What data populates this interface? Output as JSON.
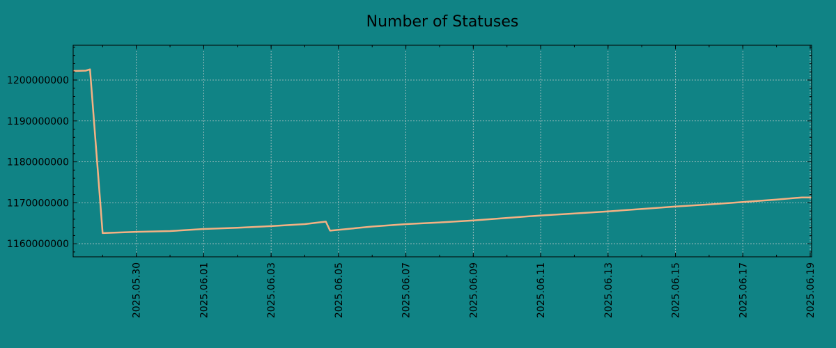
{
  "chart_data": {
    "type": "line",
    "title": "Number of Statuses",
    "xlabel": "",
    "ylabel": "",
    "x_format": "YYYY.MM.DD",
    "xlim": [
      "2025-05-28T03:00",
      "2025-06-19T01:00"
    ],
    "ylim": [
      1156800000,
      1208500000
    ],
    "grid": true,
    "x_ticks": [
      "2025.05.30",
      "2025.06.01",
      "2025.06.03",
      "2025.06.05",
      "2025.06.07",
      "2025.06.09",
      "2025.06.11",
      "2025.06.13",
      "2025.06.15",
      "2025.06.17",
      "2025.06.19"
    ],
    "y_ticks": [
      1160000000,
      1170000000,
      1180000000,
      1190000000,
      1200000000
    ],
    "series": [
      {
        "color": "#f4b183",
        "points": [
          {
            "x": "2025-05-28T03:00",
            "y": 1202200000
          },
          {
            "x": "2025-05-28T12:00",
            "y": 1202300000
          },
          {
            "x": "2025-05-28T15:00",
            "y": 1202600000
          },
          {
            "x": "2025-05-29T00:00",
            "y": 1162600000
          },
          {
            "x": "2025-05-30T00:00",
            "y": 1162900000
          },
          {
            "x": "2025-05-31T00:00",
            "y": 1163100000
          },
          {
            "x": "2025-06-01T00:00",
            "y": 1163600000
          },
          {
            "x": "2025-06-02T00:00",
            "y": 1163900000
          },
          {
            "x": "2025-06-03T00:00",
            "y": 1164300000
          },
          {
            "x": "2025-06-04T00:00",
            "y": 1164800000
          },
          {
            "x": "2025-06-04T15:00",
            "y": 1165400000
          },
          {
            "x": "2025-06-04T18:00",
            "y": 1163200000
          },
          {
            "x": "2025-06-05T00:00",
            "y": 1163400000
          },
          {
            "x": "2025-06-06T00:00",
            "y": 1164200000
          },
          {
            "x": "2025-06-07T00:00",
            "y": 1164800000
          },
          {
            "x": "2025-06-08T00:00",
            "y": 1165200000
          },
          {
            "x": "2025-06-09T00:00",
            "y": 1165700000
          },
          {
            "x": "2025-06-10T00:00",
            "y": 1166300000
          },
          {
            "x": "2025-06-11T00:00",
            "y": 1166900000
          },
          {
            "x": "2025-06-12T00:00",
            "y": 1167400000
          },
          {
            "x": "2025-06-13T00:00",
            "y": 1167900000
          },
          {
            "x": "2025-06-14T00:00",
            "y": 1168500000
          },
          {
            "x": "2025-06-15T00:00",
            "y": 1169100000
          },
          {
            "x": "2025-06-16T00:00",
            "y": 1169600000
          },
          {
            "x": "2025-06-17T00:00",
            "y": 1170200000
          },
          {
            "x": "2025-06-18T00:00",
            "y": 1170800000
          },
          {
            "x": "2025-06-18T18:00",
            "y": 1171300000
          },
          {
            "x": "2025-06-19T01:00",
            "y": 1171300000
          }
        ]
      }
    ]
  }
}
